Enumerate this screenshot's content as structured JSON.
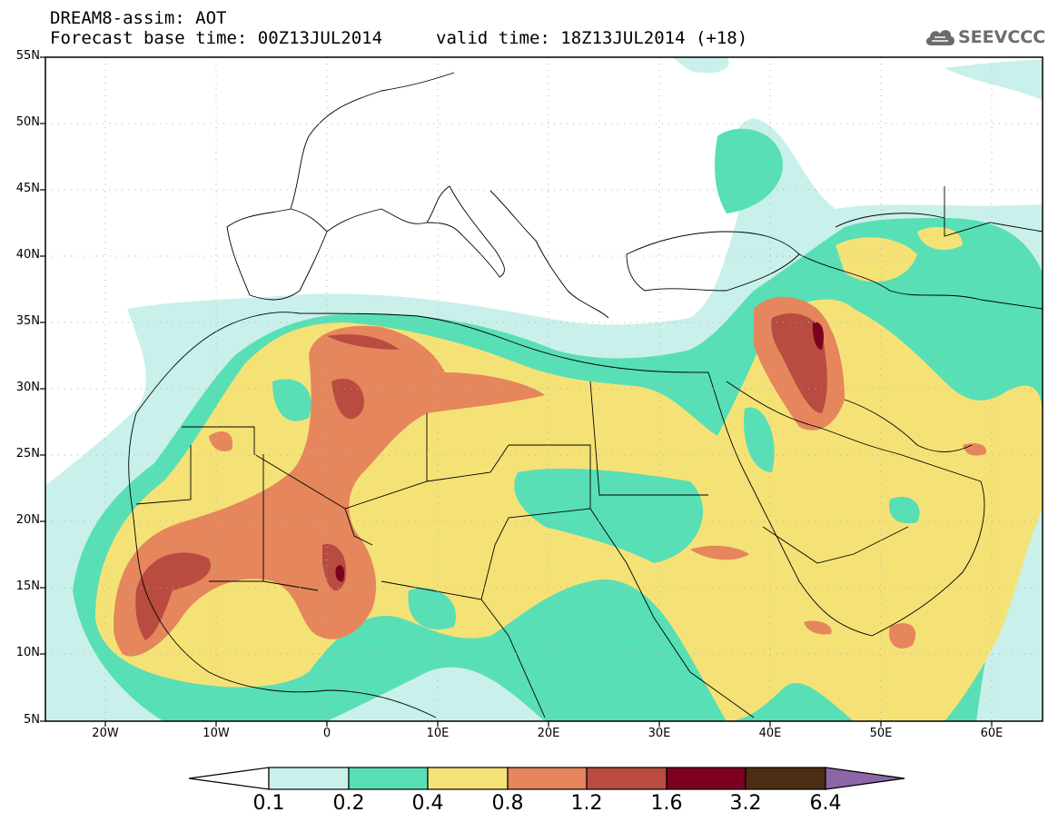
{
  "header": {
    "line1": "DREAM8-assim: AOT",
    "line2": "Forecast base time: 00Z13JUL2014",
    "valid": "valid time: 18Z13JUL2014 (+18)"
  },
  "logo": {
    "text": "SEEVCCC",
    "icon": "cloud-icon"
  },
  "map": {
    "lat_labels": [
      "55N",
      "50N",
      "45N",
      "40N",
      "35N",
      "30N",
      "25N",
      "20N",
      "15N",
      "10N",
      "5N"
    ],
    "lon_labels": [
      "20W",
      "10W",
      "0",
      "10E",
      "20E",
      "30E",
      "40E",
      "50E",
      "60E"
    ],
    "lat_range": [
      5,
      55
    ],
    "lon_range": [
      -25,
      65
    ],
    "field": "AOT"
  },
  "colorbar": {
    "labels": [
      "0.1",
      "0.2",
      "0.4",
      "0.8",
      "1.2",
      "1.6",
      "3.2",
      "6.4"
    ],
    "colors": [
      "#ffffff",
      "#c9f0ea",
      "#58dfb6",
      "#f5e276",
      "#e5865d",
      "#b84c40",
      "#7e0020",
      "#4a2d12",
      "#8c66a6"
    ]
  }
}
